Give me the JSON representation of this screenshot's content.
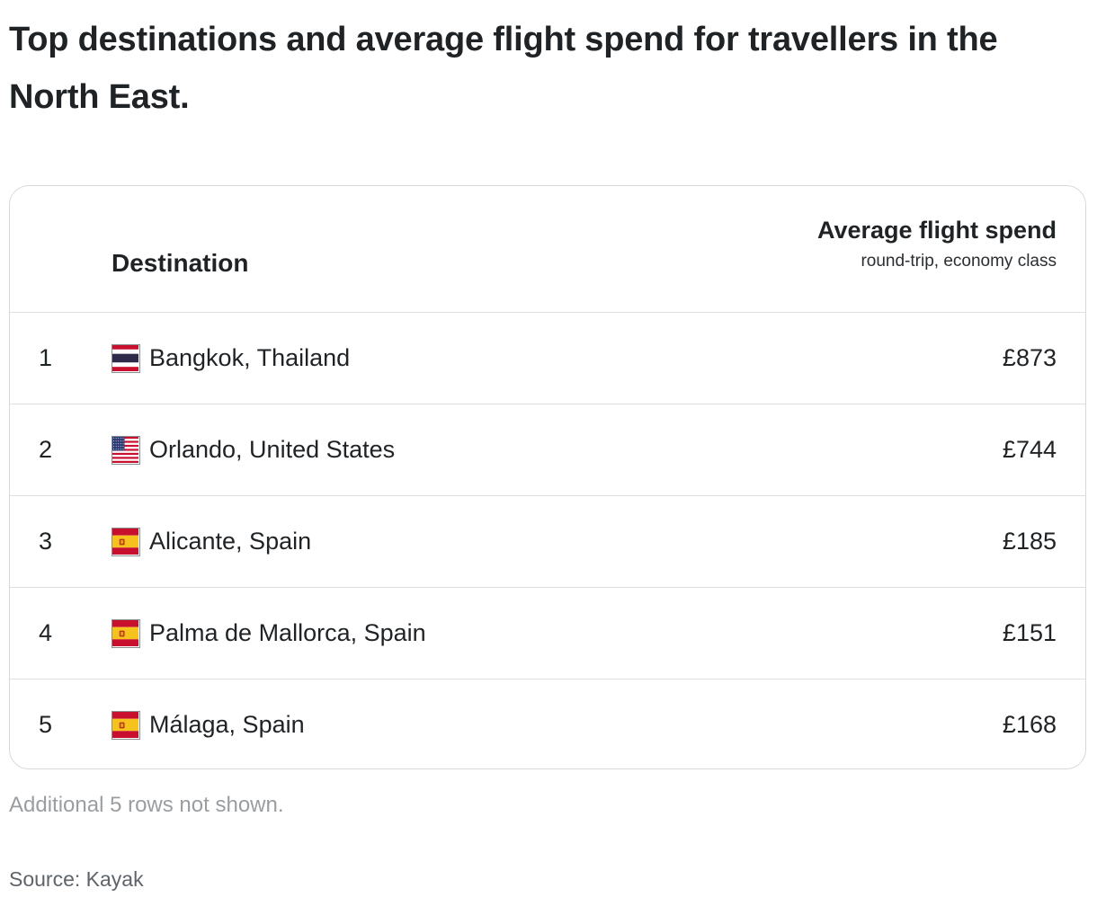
{
  "title": "Top destinations and average flight spend for travellers in the North East.",
  "chart_data": {
    "type": "table",
    "columns": [
      {
        "key": "rank",
        "label": ""
      },
      {
        "key": "destination",
        "label": "Destination"
      },
      {
        "key": "spend",
        "label": "Average flight spend",
        "sublabel": "round-trip, economy class"
      }
    ],
    "rows": [
      {
        "rank": "1",
        "flag": "thailand-flag-icon",
        "destination": "Bangkok, Thailand",
        "spend": "£873",
        "value": 873
      },
      {
        "rank": "2",
        "flag": "usa-flag-icon",
        "destination": "Orlando, United States",
        "spend": "£744",
        "value": 744
      },
      {
        "rank": "3",
        "flag": "spain-flag-icon",
        "destination": "Alicante, Spain",
        "spend": "£185",
        "value": 185
      },
      {
        "rank": "4",
        "flag": "spain-flag-icon",
        "destination": "Palma de Mallorca, Spain",
        "spend": "£151",
        "value": 151
      },
      {
        "rank": "5",
        "flag": "spain-flag-icon",
        "destination": "Málaga, Spain",
        "spend": "£168",
        "value": 168
      }
    ]
  },
  "footnote": "Additional 5 rows not shown.",
  "source": "Source: Kayak",
  "colors": {
    "text": "#1f2326",
    "border": "#d6d8da",
    "muted": "#9a9ea1"
  }
}
